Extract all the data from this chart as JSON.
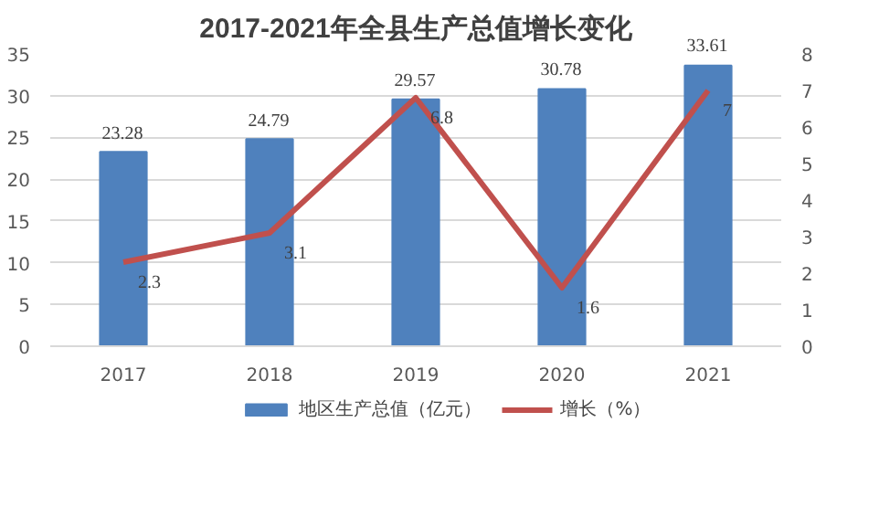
{
  "chart_data": {
    "type": "bar",
    "title": "2017-2021年全县生产总值增长变化",
    "categories": [
      "2017",
      "2018",
      "2019",
      "2020",
      "2021"
    ],
    "series": [
      {
        "name": "地区生产总值（亿元）",
        "color": "#4f81bd",
        "values": [
          23.28,
          24.79,
          29.57,
          30.78,
          33.61
        ]
      },
      {
        "name": "增长（%）",
        "type": "line",
        "color": "#c0504d",
        "axis": "y2",
        "values": [
          2.3,
          3.1,
          6.8,
          1.6,
          7
        ]
      }
    ],
    "ylim": [
      0,
      35
    ],
    "yticks": [
      0,
      5,
      10,
      15,
      20,
      25,
      30,
      35
    ],
    "y2lim": [
      0,
      8
    ],
    "y2ticks": [
      0,
      1,
      2,
      3,
      4,
      5,
      6,
      7,
      8
    ],
    "data_labels": true,
    "grid": "y",
    "legend": "bottom",
    "marker": "none"
  }
}
